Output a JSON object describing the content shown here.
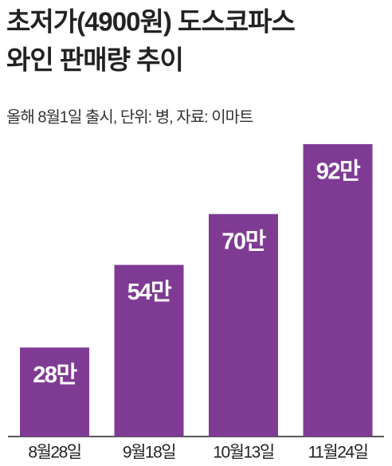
{
  "chart_data": {
    "type": "bar",
    "title": [
      "초저가(4900원) 도스코파스",
      "와인 판매량 추이"
    ],
    "subtitle": "올해 8월1일  출시, 단위: 병, 자료: 이마트",
    "categories": [
      "8월28일",
      "9월18일",
      "10월13일",
      "11월24일"
    ],
    "values": [
      28,
      54,
      70,
      92
    ],
    "value_labels": [
      "28만",
      "54만",
      "70만",
      "92만"
    ],
    "color": "#7f3b94"
  }
}
